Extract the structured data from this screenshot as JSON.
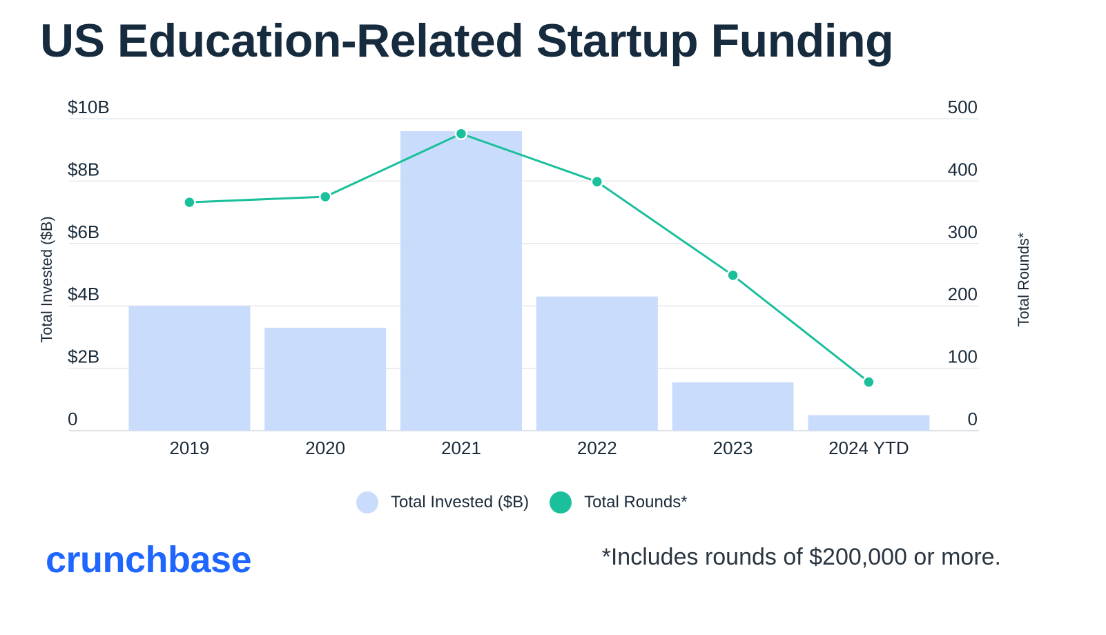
{
  "title": "US Education-Related Startup Funding",
  "chart_data": {
    "type": "bar",
    "categories": [
      "2019",
      "2020",
      "2021",
      "2022",
      "2023",
      "2024 YTD"
    ],
    "series": [
      {
        "name": "Total Invested ($B)",
        "type": "bar",
        "axis": "left",
        "color": "#cadcfc",
        "values": [
          4.0,
          3.3,
          9.6,
          4.3,
          1.55,
          0.5
        ]
      },
      {
        "name": "Total Rounds*",
        "type": "line",
        "axis": "right",
        "color": "#1abf9b",
        "values": [
          366,
          375,
          476,
          399,
          249,
          78
        ]
      }
    ],
    "y_left": {
      "label": "Total Invested ($B)",
      "range": [
        0,
        10
      ],
      "ticks": [
        0,
        2,
        4,
        6,
        8,
        10
      ],
      "tick_labels": [
        "0",
        "$2B",
        "$4B",
        "$6B",
        "$8B",
        "$10B"
      ]
    },
    "y_right": {
      "label": "Total Rounds*",
      "range": [
        0,
        500
      ],
      "ticks": [
        0,
        100,
        200,
        300,
        400,
        500
      ],
      "tick_labels": [
        "0",
        "100",
        "200",
        "300",
        "400",
        "500"
      ]
    },
    "grid": true,
    "legend_position": "bottom-center"
  },
  "legend": [
    {
      "label": "Total Invested ($B)",
      "color": "#cadcfc"
    },
    {
      "label": "Total Rounds*",
      "color": "#1abf9b"
    }
  ],
  "brand": "crunchbase",
  "footnote": "*Includes rounds of $200,000 or more."
}
